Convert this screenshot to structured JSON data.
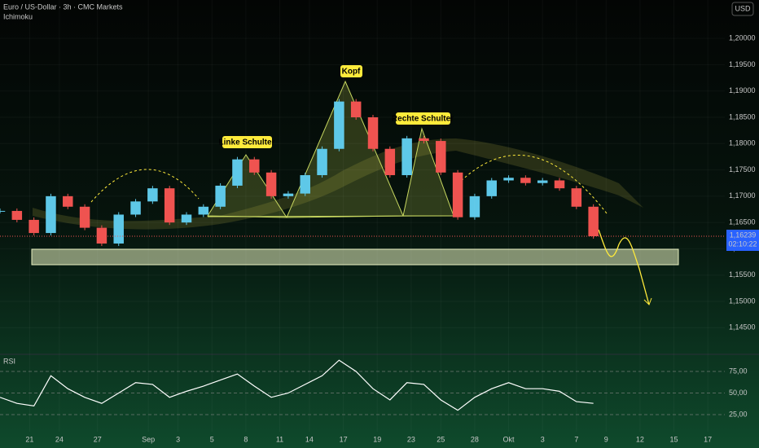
{
  "header": {
    "title": "Euro / US-Dollar · 3h · CMC Markets",
    "indicator": "Ichimoku",
    "currency": "USD",
    "rsi_label": "RSI",
    "countdown": "02:10:22"
  },
  "annotations": [
    "Linke Schulter",
    "Kopf",
    "Rechte Schulter"
  ],
  "chart_data": [
    {
      "type": "candlestick",
      "up_color": "#5ec8e8",
      "down_color": "#ef5350",
      "x": [
        0,
        4,
        8,
        12,
        16,
        20,
        24,
        28,
        32,
        36,
        40,
        44,
        48,
        52,
        56,
        60,
        64,
        68,
        72,
        76,
        80,
        84,
        88,
        92,
        96,
        100,
        104,
        108,
        112,
        116,
        120,
        124,
        128,
        132,
        136,
        140
      ],
      "close": [
        1.1672,
        1.1655,
        1.163,
        1.17,
        1.168,
        1.164,
        1.161,
        1.1665,
        1.169,
        1.1715,
        1.165,
        1.1665,
        1.168,
        1.172,
        1.177,
        1.1745,
        1.17,
        1.1705,
        1.174,
        1.179,
        1.188,
        1.185,
        1.179,
        1.174,
        1.181,
        1.1805,
        1.1745,
        1.166,
        1.17,
        1.173,
        1.1735,
        1.1725,
        1.173,
        1.1715,
        1.168,
        1.16239
      ],
      "last_price": {
        "value": 1.16239,
        "label": "1,16239"
      },
      "xlim": [
        0,
        171
      ],
      "xticks": [
        {
          "value": 7,
          "label": "21"
        },
        {
          "value": 14,
          "label": "24"
        },
        {
          "value": 23,
          "label": "27"
        },
        {
          "value": 35,
          "label": "Sep"
        },
        {
          "value": 42,
          "label": "3"
        },
        {
          "value": 50,
          "label": "5"
        },
        {
          "value": 58,
          "label": "8"
        },
        {
          "value": 66,
          "label": "11"
        },
        {
          "value": 73,
          "label": "14"
        },
        {
          "value": 81,
          "label": "17"
        },
        {
          "value": 89,
          "label": "19"
        },
        {
          "value": 97,
          "label": "23"
        },
        {
          "value": 104,
          "label": "25"
        },
        {
          "value": 112,
          "label": "28"
        },
        {
          "value": 120,
          "label": "Okt"
        },
        {
          "value": 128,
          "label": "3"
        },
        {
          "value": 136,
          "label": "7"
        },
        {
          "value": 143,
          "label": "9"
        },
        {
          "value": 151,
          "label": "12"
        },
        {
          "value": 159,
          "label": "15"
        },
        {
          "value": 167,
          "label": "17"
        }
      ],
      "ylim": [
        1.1404,
        1.2073
      ],
      "yticks": [
        {
          "value": 1.145,
          "label": "1,14500"
        },
        {
          "value": 1.15,
          "label": "1,15000"
        },
        {
          "value": 1.155,
          "label": "1,15500"
        },
        {
          "value": 1.16,
          "label": "1,16000"
        },
        {
          "value": 1.165,
          "label": "1,16500"
        },
        {
          "value": 1.17,
          "label": "1,17000"
        },
        {
          "value": 1.175,
          "label": "1,17500"
        },
        {
          "value": 1.18,
          "label": "1,18000"
        },
        {
          "value": 1.185,
          "label": "1,18500"
        },
        {
          "value": 1.19,
          "label": "1,19000"
        },
        {
          "value": 1.195,
          "label": "1,19500"
        },
        {
          "value": 1.2,
          "label": "1,20000"
        }
      ]
    },
    {
      "type": "line",
      "color": "#ffffff",
      "x": [
        0,
        4,
        8,
        12,
        16,
        20,
        24,
        28,
        32,
        36,
        40,
        44,
        48,
        52,
        56,
        60,
        64,
        68,
        72,
        76,
        80,
        84,
        88,
        92,
        96,
        100,
        104,
        108,
        112,
        116,
        120,
        124,
        128,
        132,
        136,
        140
      ],
      "values": [
        45,
        38,
        35,
        70,
        55,
        45,
        38,
        50,
        62,
        60,
        45,
        52,
        58,
        65,
        72,
        58,
        45,
        50,
        60,
        70,
        88,
        75,
        55,
        42,
        62,
        60,
        42,
        30,
        45,
        55,
        62,
        55,
        55,
        52,
        40,
        38
      ],
      "xlim": [
        0,
        171
      ],
      "ylim": [
        12.7,
        92
      ],
      "yticks": [
        {
          "value": 25,
          "label": "25,00"
        },
        {
          "value": 50,
          "label": "50,00"
        },
        {
          "value": 75,
          "label": "75,00"
        }
      ]
    }
  ]
}
